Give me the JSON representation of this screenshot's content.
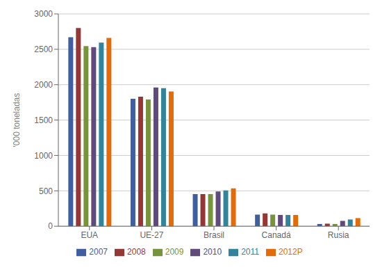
{
  "chart_data": {
    "type": "bar",
    "ylabel": "'000 toneladas",
    "categories": [
      "EUA",
      "UE-27",
      "Brasil",
      "Canadá",
      "Rusia"
    ],
    "series": [
      {
        "name": "2007",
        "color": "#3F5FA0",
        "values": [
          2670,
          1800,
          455,
          165,
          30
        ]
      },
      {
        "name": "2008",
        "color": "#953735",
        "values": [
          2800,
          1830,
          455,
          180,
          35
        ]
      },
      {
        "name": "2009",
        "color": "#77933C",
        "values": [
          2545,
          1790,
          455,
          165,
          30
        ]
      },
      {
        "name": "2010",
        "color": "#604A7B",
        "values": [
          2530,
          1960,
          490,
          160,
          75
        ]
      },
      {
        "name": "2011",
        "color": "#31849B",
        "values": [
          2595,
          1950,
          505,
          160,
          95
        ]
      },
      {
        "name": "2012P",
        "color": "#E36C09",
        "values": [
          2660,
          1905,
          535,
          160,
          115
        ]
      }
    ],
    "ylim": [
      0,
      3000
    ],
    "yticks": [
      0,
      500,
      1000,
      1500,
      2000,
      2500,
      3000
    ],
    "grid": true,
    "legend": "bottom"
  }
}
